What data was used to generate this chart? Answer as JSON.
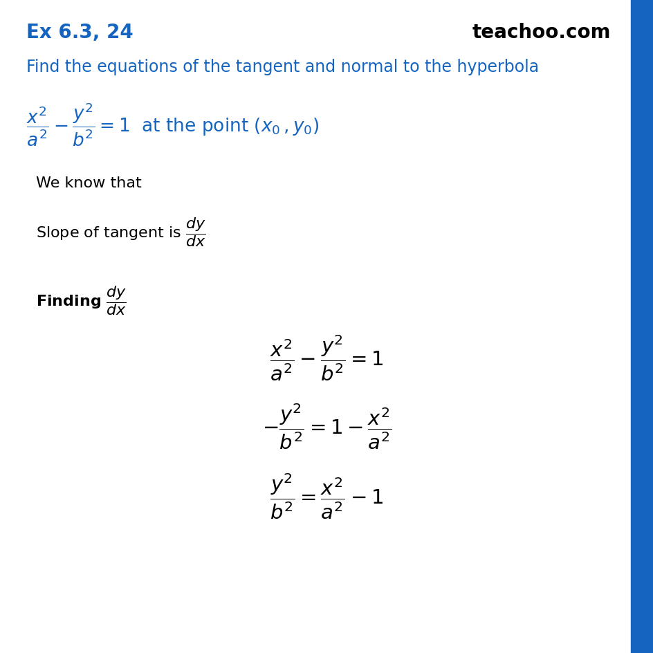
{
  "bg_color": "#ffffff",
  "right_bar_color": "#1565c0",
  "header_label": "Ex 6.3, 24",
  "header_color": "#1565c0",
  "brand": "teachoo.com",
  "brand_color": "#000000",
  "question_color": "#1565c0",
  "body_color": "#000000",
  "fig_width": 9.45,
  "fig_height": 9.45
}
